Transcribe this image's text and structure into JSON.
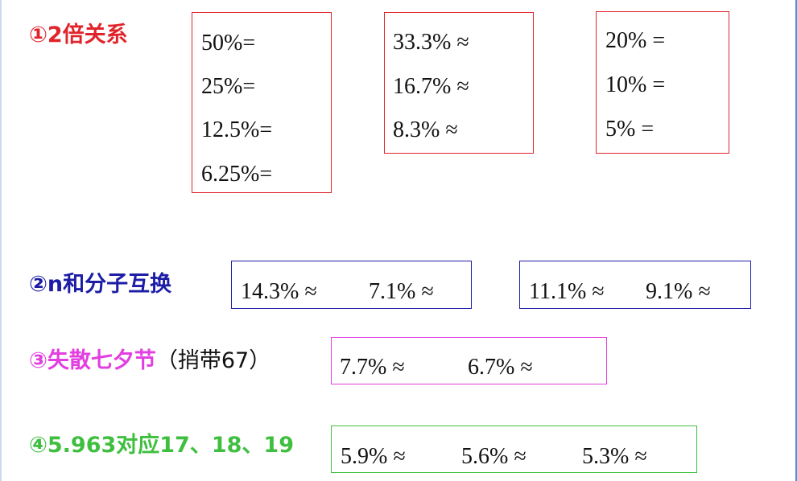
{
  "section1": {
    "title": "①2倍关系",
    "color": "#e0242b",
    "box_a": [
      "50%=",
      "25%=",
      "12.5%=",
      "6.25%="
    ],
    "box_b": [
      "33.3% ≈",
      "16.7% ≈",
      "8.3% ≈"
    ],
    "box_c": [
      "20% =",
      "10% =",
      "5% ="
    ]
  },
  "section2": {
    "title": "②n和分子互换",
    "color": "#1d1da6",
    "box_a": [
      "14.3% ≈",
      "7.1% ≈"
    ],
    "box_b": [
      "11.1% ≈",
      "9.1% ≈"
    ]
  },
  "section3": {
    "title": "③失散七夕节",
    "note": "（捎带67）",
    "color": "#e23ee0",
    "box_a": [
      "7.7% ≈",
      "6.7% ≈"
    ]
  },
  "section4": {
    "title": "④5.963对应17、18、19",
    "color": "#3fbf3f",
    "box_a": [
      "5.9% ≈",
      "5.6% ≈",
      "5.3% ≈"
    ]
  }
}
